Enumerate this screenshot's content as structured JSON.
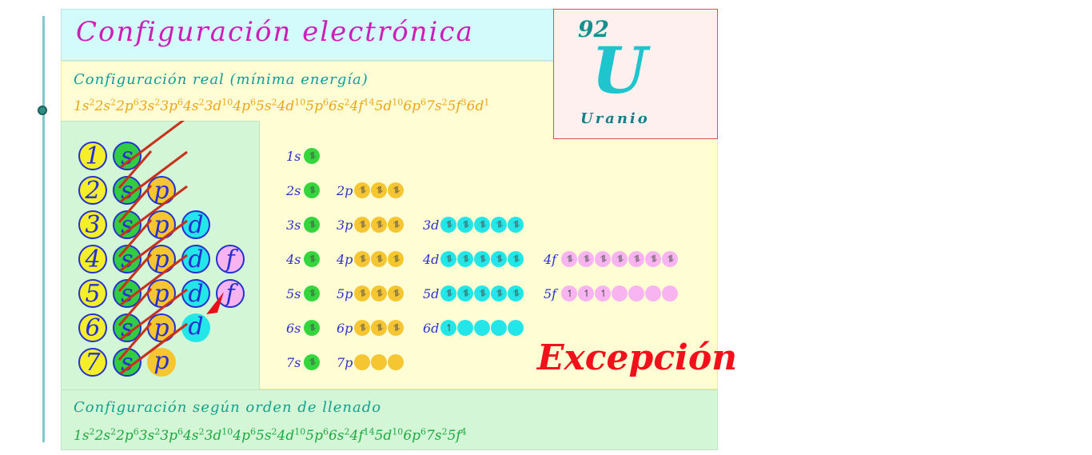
{
  "title": "Configuración electrónica",
  "element": {
    "atomic_number": "92",
    "symbol": "U",
    "name": "Uranio"
  },
  "real_config": {
    "label": "Configuración real (mínima energía)",
    "terms": [
      {
        "o": "1s",
        "e": "2"
      },
      {
        "o": "2s",
        "e": "2"
      },
      {
        "o": "2p",
        "e": "6"
      },
      {
        "o": "3s",
        "e": "2"
      },
      {
        "o": "3p",
        "e": "6"
      },
      {
        "o": "4s",
        "e": "2"
      },
      {
        "o": "3d",
        "e": "10"
      },
      {
        "o": "4p",
        "e": "6"
      },
      {
        "o": "5s",
        "e": "2"
      },
      {
        "o": "4d",
        "e": "10"
      },
      {
        "o": "5p",
        "e": "6"
      },
      {
        "o": "6s",
        "e": "2"
      },
      {
        "o": "4f",
        "e": "14"
      },
      {
        "o": "5d",
        "e": "10"
      },
      {
        "o": "6p",
        "e": "6"
      },
      {
        "o": "7s",
        "e": "2"
      },
      {
        "o": "5f",
        "e": "3"
      },
      {
        "o": "6d",
        "e": "1"
      }
    ]
  },
  "filling_config": {
    "label": "Configuración según orden de llenado",
    "terms": [
      {
        "o": "1s",
        "e": "2"
      },
      {
        "o": "2s",
        "e": "2"
      },
      {
        "o": "2p",
        "e": "6"
      },
      {
        "o": "3s",
        "e": "2"
      },
      {
        "o": "3p",
        "e": "6"
      },
      {
        "o": "4s",
        "e": "2"
      },
      {
        "o": "3d",
        "e": "10"
      },
      {
        "o": "4p",
        "e": "6"
      },
      {
        "o": "5s",
        "e": "2"
      },
      {
        "o": "4d",
        "e": "10"
      },
      {
        "o": "5p",
        "e": "6"
      },
      {
        "o": "6s",
        "e": "2"
      },
      {
        "o": "4f",
        "e": "14"
      },
      {
        "o": "5d",
        "e": "10"
      },
      {
        "o": "6p",
        "e": "6"
      },
      {
        "o": "7s",
        "e": "2"
      },
      {
        "o": "5f",
        "e": "4"
      }
    ]
  },
  "exception_label": "Excepción",
  "diagram_rows": [
    {
      "n": "1",
      "subs": [
        "s"
      ]
    },
    {
      "n": "2",
      "subs": [
        "s",
        "p"
      ]
    },
    {
      "n": "3",
      "subs": [
        "s",
        "p",
        "d"
      ]
    },
    {
      "n": "4",
      "subs": [
        "s",
        "p",
        "d",
        "f"
      ]
    },
    {
      "n": "5",
      "subs": [
        "s",
        "p",
        "d",
        "f"
      ]
    },
    {
      "n": "6",
      "subs": [
        "s",
        "p",
        "d"
      ]
    },
    {
      "n": "7",
      "subs": [
        "s",
        "p"
      ]
    }
  ],
  "orbital_rows": [
    [
      {
        "label": "1s",
        "type": "s",
        "boxes": [
          "⥮"
        ]
      }
    ],
    [
      {
        "label": "2s",
        "type": "s",
        "boxes": [
          "⥮"
        ]
      },
      {
        "label": "2p",
        "type": "p",
        "boxes": [
          "⥮",
          "⥮",
          "⥮"
        ]
      }
    ],
    [
      {
        "label": "3s",
        "type": "s",
        "boxes": [
          "⥮"
        ]
      },
      {
        "label": "3p",
        "type": "p",
        "boxes": [
          "⥮",
          "⥮",
          "⥮"
        ]
      },
      {
        "label": "3d",
        "type": "d",
        "boxes": [
          "⥮",
          "⥮",
          "⥮",
          "⥮",
          "⥮"
        ]
      }
    ],
    [
      {
        "label": "4s",
        "type": "s",
        "boxes": [
          "⥮"
        ]
      },
      {
        "label": "4p",
        "type": "p",
        "boxes": [
          "⥮",
          "⥮",
          "⥮"
        ]
      },
      {
        "label": "4d",
        "type": "d",
        "boxes": [
          "⥮",
          "⥮",
          "⥮",
          "⥮",
          "⥮"
        ]
      },
      {
        "label": "4f",
        "type": "f",
        "boxes": [
          "⥮",
          "⥮",
          "⥮",
          "⥮",
          "⥮",
          "⥮",
          "⥮"
        ]
      }
    ],
    [
      {
        "label": "5s",
        "type": "s",
        "boxes": [
          "⥮"
        ]
      },
      {
        "label": "5p",
        "type": "p",
        "boxes": [
          "⥮",
          "⥮",
          "⥮"
        ]
      },
      {
        "label": "5d",
        "type": "d",
        "boxes": [
          "⥮",
          "⥮",
          "⥮",
          "⥮",
          "⥮"
        ]
      },
      {
        "label": "5f",
        "type": "f",
        "boxes": [
          "↿",
          "↿",
          "↿",
          "",
          "",
          "",
          ""
        ]
      }
    ],
    [
      {
        "label": "6s",
        "type": "s",
        "boxes": [
          "⥮"
        ]
      },
      {
        "label": "6p",
        "type": "p",
        "boxes": [
          "⥮",
          "⥮",
          "⥮"
        ]
      },
      {
        "label": "6d",
        "type": "d",
        "boxes": [
          "↿",
          "",
          "",
          "",
          ""
        ]
      }
    ],
    [
      {
        "label": "7s",
        "type": "s",
        "boxes": [
          "⥮"
        ]
      },
      {
        "label": "7p",
        "type": "p",
        "boxes": [
          "",
          "",
          ""
        ]
      }
    ]
  ],
  "colors": {
    "arrow": "#c8321c",
    "highlight_arrow": "#e8111a"
  }
}
